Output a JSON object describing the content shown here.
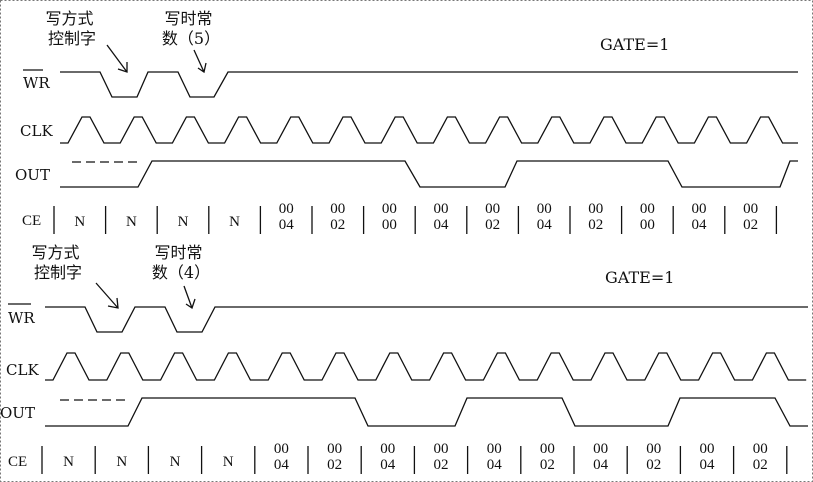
{
  "diagrams": [
    {
      "note_mode": "写方式\n控制字",
      "note_count": "写时常\n数（5）",
      "gate": "GATE=1",
      "signals": {
        "wr": "WR",
        "clk": "CLK",
        "out": "OUT",
        "ce": "CE"
      },
      "ce_values": [
        "N",
        "N",
        "N",
        "N",
        "00\n04",
        "00\n02",
        "00\n00",
        "00\n04",
        "00\n02",
        "00\n04",
        "00\n02",
        "00\n00",
        "00\n04",
        "00\n02"
      ]
    },
    {
      "note_mode": "写方式\n控制字",
      "note_count": "写时常\n数（4）",
      "gate": "GATE=1",
      "signals": {
        "wr": "WR",
        "clk": "CLK",
        "out": "OUT",
        "ce": "CE"
      },
      "ce_values": [
        "N",
        "N",
        "N",
        "N",
        "00\n04",
        "00\n02",
        "00\n04",
        "00\n02",
        "00\n04",
        "00\n02",
        "00\n04",
        "00\n02",
        "00\n04",
        "00\n02"
      ]
    }
  ]
}
